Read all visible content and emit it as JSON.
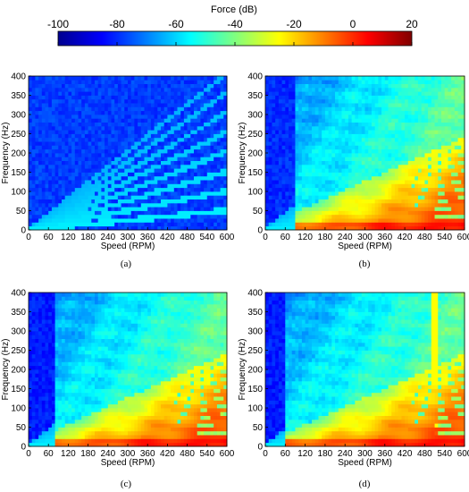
{
  "colorbar": {
    "title": "Force (dB)",
    "range": [
      -100,
      20
    ],
    "ticks": [
      -100,
      -80,
      -60,
      -40,
      -20,
      0,
      20
    ],
    "colormap": "jet"
  },
  "chart_data": [
    {
      "type": "heatmap",
      "panel": "(a)",
      "xlabel": "Speed (RPM)",
      "ylabel": "Frequency (Hz)",
      "xlim": [
        0,
        600
      ],
      "ylim": [
        0,
        400
      ],
      "xticks": [
        0,
        60,
        120,
        180,
        240,
        300,
        360,
        420,
        480,
        540,
        600
      ],
      "yticks": [
        0,
        50,
        100,
        150,
        200,
        250,
        300,
        350,
        400
      ],
      "z_unit": "Force (dB)",
      "background_db": -78,
      "order_line_db": -62,
      "harmonic_lines": [
        {
          "frequency": 50,
          "level_db": -28,
          "x_range": [
            0,
            600
          ]
        },
        {
          "frequency": 150,
          "level_db": -55,
          "x_range": [
            0,
            600
          ]
        },
        {
          "frequency": 250,
          "level_db": -50,
          "x_range": [
            0,
            600
          ]
        },
        {
          "frequency": 350,
          "level_db": -62,
          "x_range": [
            0,
            600
          ]
        }
      ],
      "vertical_bands": [],
      "onset_rpm": null
    },
    {
      "type": "heatmap",
      "panel": "(b)",
      "xlabel": "Speed (RPM)",
      "ylabel": "Frequency (Hz)",
      "xlim": [
        0,
        600
      ],
      "ylim": [
        0,
        400
      ],
      "xticks": [
        0,
        60,
        120,
        180,
        240,
        300,
        360,
        420,
        480,
        540,
        600
      ],
      "yticks": [
        0,
        50,
        100,
        150,
        200,
        250,
        300,
        350,
        400
      ],
      "z_unit": "Force (dB)",
      "background_db": -80,
      "order_line_db": -62,
      "harmonic_lines": [
        {
          "frequency": 50,
          "level_db": -28,
          "x_range": [
            0,
            90
          ]
        },
        {
          "frequency": 150,
          "level_db": -60,
          "x_range": [
            0,
            90
          ]
        },
        {
          "frequency": 250,
          "level_db": -60,
          "x_range": [
            0,
            90
          ]
        }
      ],
      "vertical_bands": [],
      "onset_rpm": 90
    },
    {
      "type": "heatmap",
      "panel": "(c)",
      "xlabel": "Speed (RPM)",
      "ylabel": "Frequency (Hz)",
      "xlim": [
        0,
        600
      ],
      "ylim": [
        0,
        400
      ],
      "xticks": [
        0,
        60,
        120,
        180,
        240,
        300,
        360,
        420,
        480,
        540,
        600
      ],
      "yticks": [
        0,
        50,
        100,
        150,
        200,
        250,
        300,
        350,
        400
      ],
      "z_unit": "Force (dB)",
      "background_db": -82,
      "order_line_db": -62,
      "harmonic_lines": [
        {
          "frequency": 50,
          "level_db": -20,
          "x_range": [
            0,
            80
          ]
        },
        {
          "frequency": 150,
          "level_db": -60,
          "x_range": [
            0,
            80
          ]
        },
        {
          "frequency": 250,
          "level_db": -62,
          "x_range": [
            0,
            80
          ]
        }
      ],
      "vertical_bands": [],
      "onset_rpm": 80
    },
    {
      "type": "heatmap",
      "panel": "(d)",
      "xlabel": "Speed (RPM)",
      "ylabel": "Frequency (Hz)",
      "xlim": [
        0,
        600
      ],
      "ylim": [
        0,
        400
      ],
      "xticks": [
        0,
        60,
        120,
        180,
        240,
        300,
        360,
        420,
        480,
        540,
        600
      ],
      "yticks": [
        0,
        50,
        100,
        150,
        200,
        250,
        300,
        350,
        400
      ],
      "z_unit": "Force (dB)",
      "background_db": -82,
      "order_line_db": -62,
      "harmonic_lines": [
        {
          "frequency": 50,
          "level_db": -20,
          "x_range": [
            0,
            65
          ]
        },
        {
          "frequency": 150,
          "level_db": -62,
          "x_range": [
            0,
            65
          ]
        },
        {
          "frequency": 250,
          "level_db": -62,
          "x_range": [
            0,
            65
          ]
        }
      ],
      "vertical_bands": [
        {
          "x_range": [
            505,
            520
          ],
          "level_db": -25
        }
      ],
      "onset_rpm": 65
    }
  ]
}
